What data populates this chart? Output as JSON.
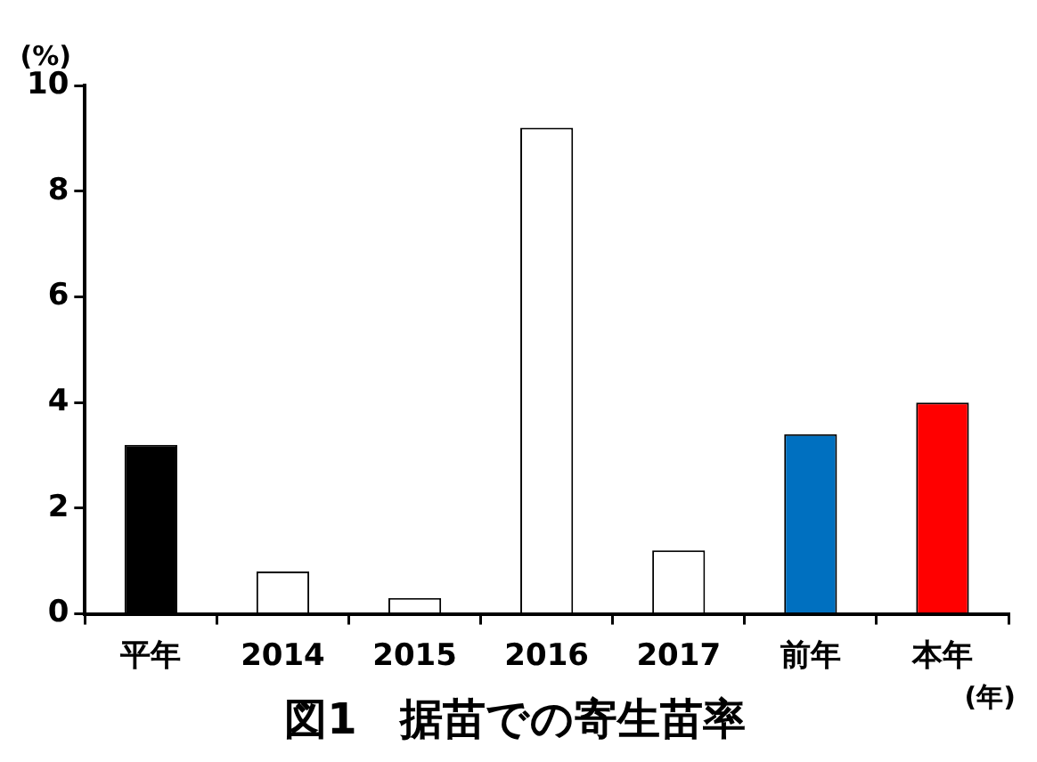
{
  "chart_data": {
    "type": "bar",
    "title": "図1　据苗での寄生苗率",
    "xlabel": "(年)",
    "ylabel": "(%)",
    "categories": [
      "平年",
      "2014",
      "2015",
      "2016",
      "2017",
      "前年",
      "本年"
    ],
    "values": [
      3.2,
      0.8,
      0.3,
      9.2,
      1.2,
      3.4,
      4.0
    ],
    "colors": [
      "#000000",
      "#ffffff",
      "#ffffff",
      "#ffffff",
      "#ffffff",
      "#0070c0",
      "#ff0000"
    ],
    "ylim": [
      0,
      10
    ],
    "yticks": [
      0,
      2,
      4,
      6,
      8,
      10
    ],
    "grid": false,
    "legend": false
  }
}
